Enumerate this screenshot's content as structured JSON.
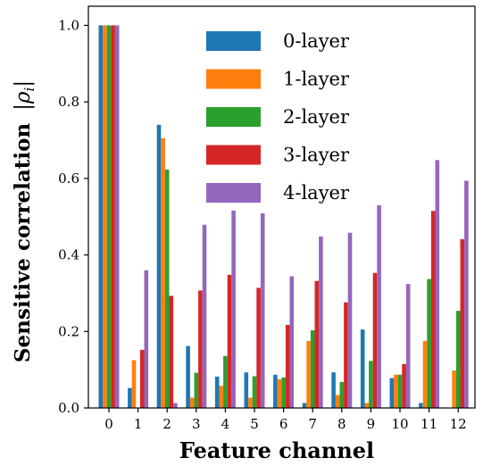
{
  "chart_data": {
    "type": "bar",
    "title": "",
    "xlabel": "Feature channel",
    "ylabel_prefix": "Sensitive correlation",
    "ylabel_symbol": "ρ",
    "ylabel_sub": "i",
    "ylim": [
      0,
      1.05
    ],
    "yticks": [
      "0.0",
      "0.2",
      "0.4",
      "0.6",
      "0.8",
      "1.0"
    ],
    "categories": [
      "0",
      "1",
      "2",
      "3",
      "4",
      "5",
      "6",
      "7",
      "8",
      "9",
      "10",
      "11",
      "12"
    ],
    "grid": false,
    "legend_position": "top-center",
    "series": [
      {
        "name": "0-layer",
        "color": "#1f77b4",
        "values": [
          1.0,
          0.052,
          0.74,
          0.162,
          0.082,
          0.093,
          0.087,
          0.013,
          0.093,
          0.205,
          0.078,
          0.013,
          0.0
        ]
      },
      {
        "name": "1-layer",
        "color": "#ff7f0e",
        "values": [
          1.0,
          0.125,
          0.705,
          0.027,
          0.058,
          0.027,
          0.075,
          0.175,
          0.034,
          0.013,
          0.087,
          0.175,
          0.098
        ]
      },
      {
        "name": "2-layer",
        "color": "#2ca02c",
        "values": [
          1.0,
          0.0,
          0.623,
          0.092,
          0.136,
          0.083,
          0.08,
          0.203,
          0.068,
          0.123,
          0.087,
          0.337,
          0.254
        ]
      },
      {
        "name": "3-layer",
        "color": "#d62728",
        "values": [
          1.0,
          0.152,
          0.293,
          0.307,
          0.348,
          0.314,
          0.217,
          0.332,
          0.276,
          0.353,
          0.115,
          0.515,
          0.441
        ]
      },
      {
        "name": "4-layer",
        "color": "#9467bd",
        "values": [
          1.0,
          0.36,
          0.013,
          0.479,
          0.516,
          0.509,
          0.344,
          0.448,
          0.458,
          0.53,
          0.324,
          0.648,
          0.594
        ]
      }
    ]
  }
}
